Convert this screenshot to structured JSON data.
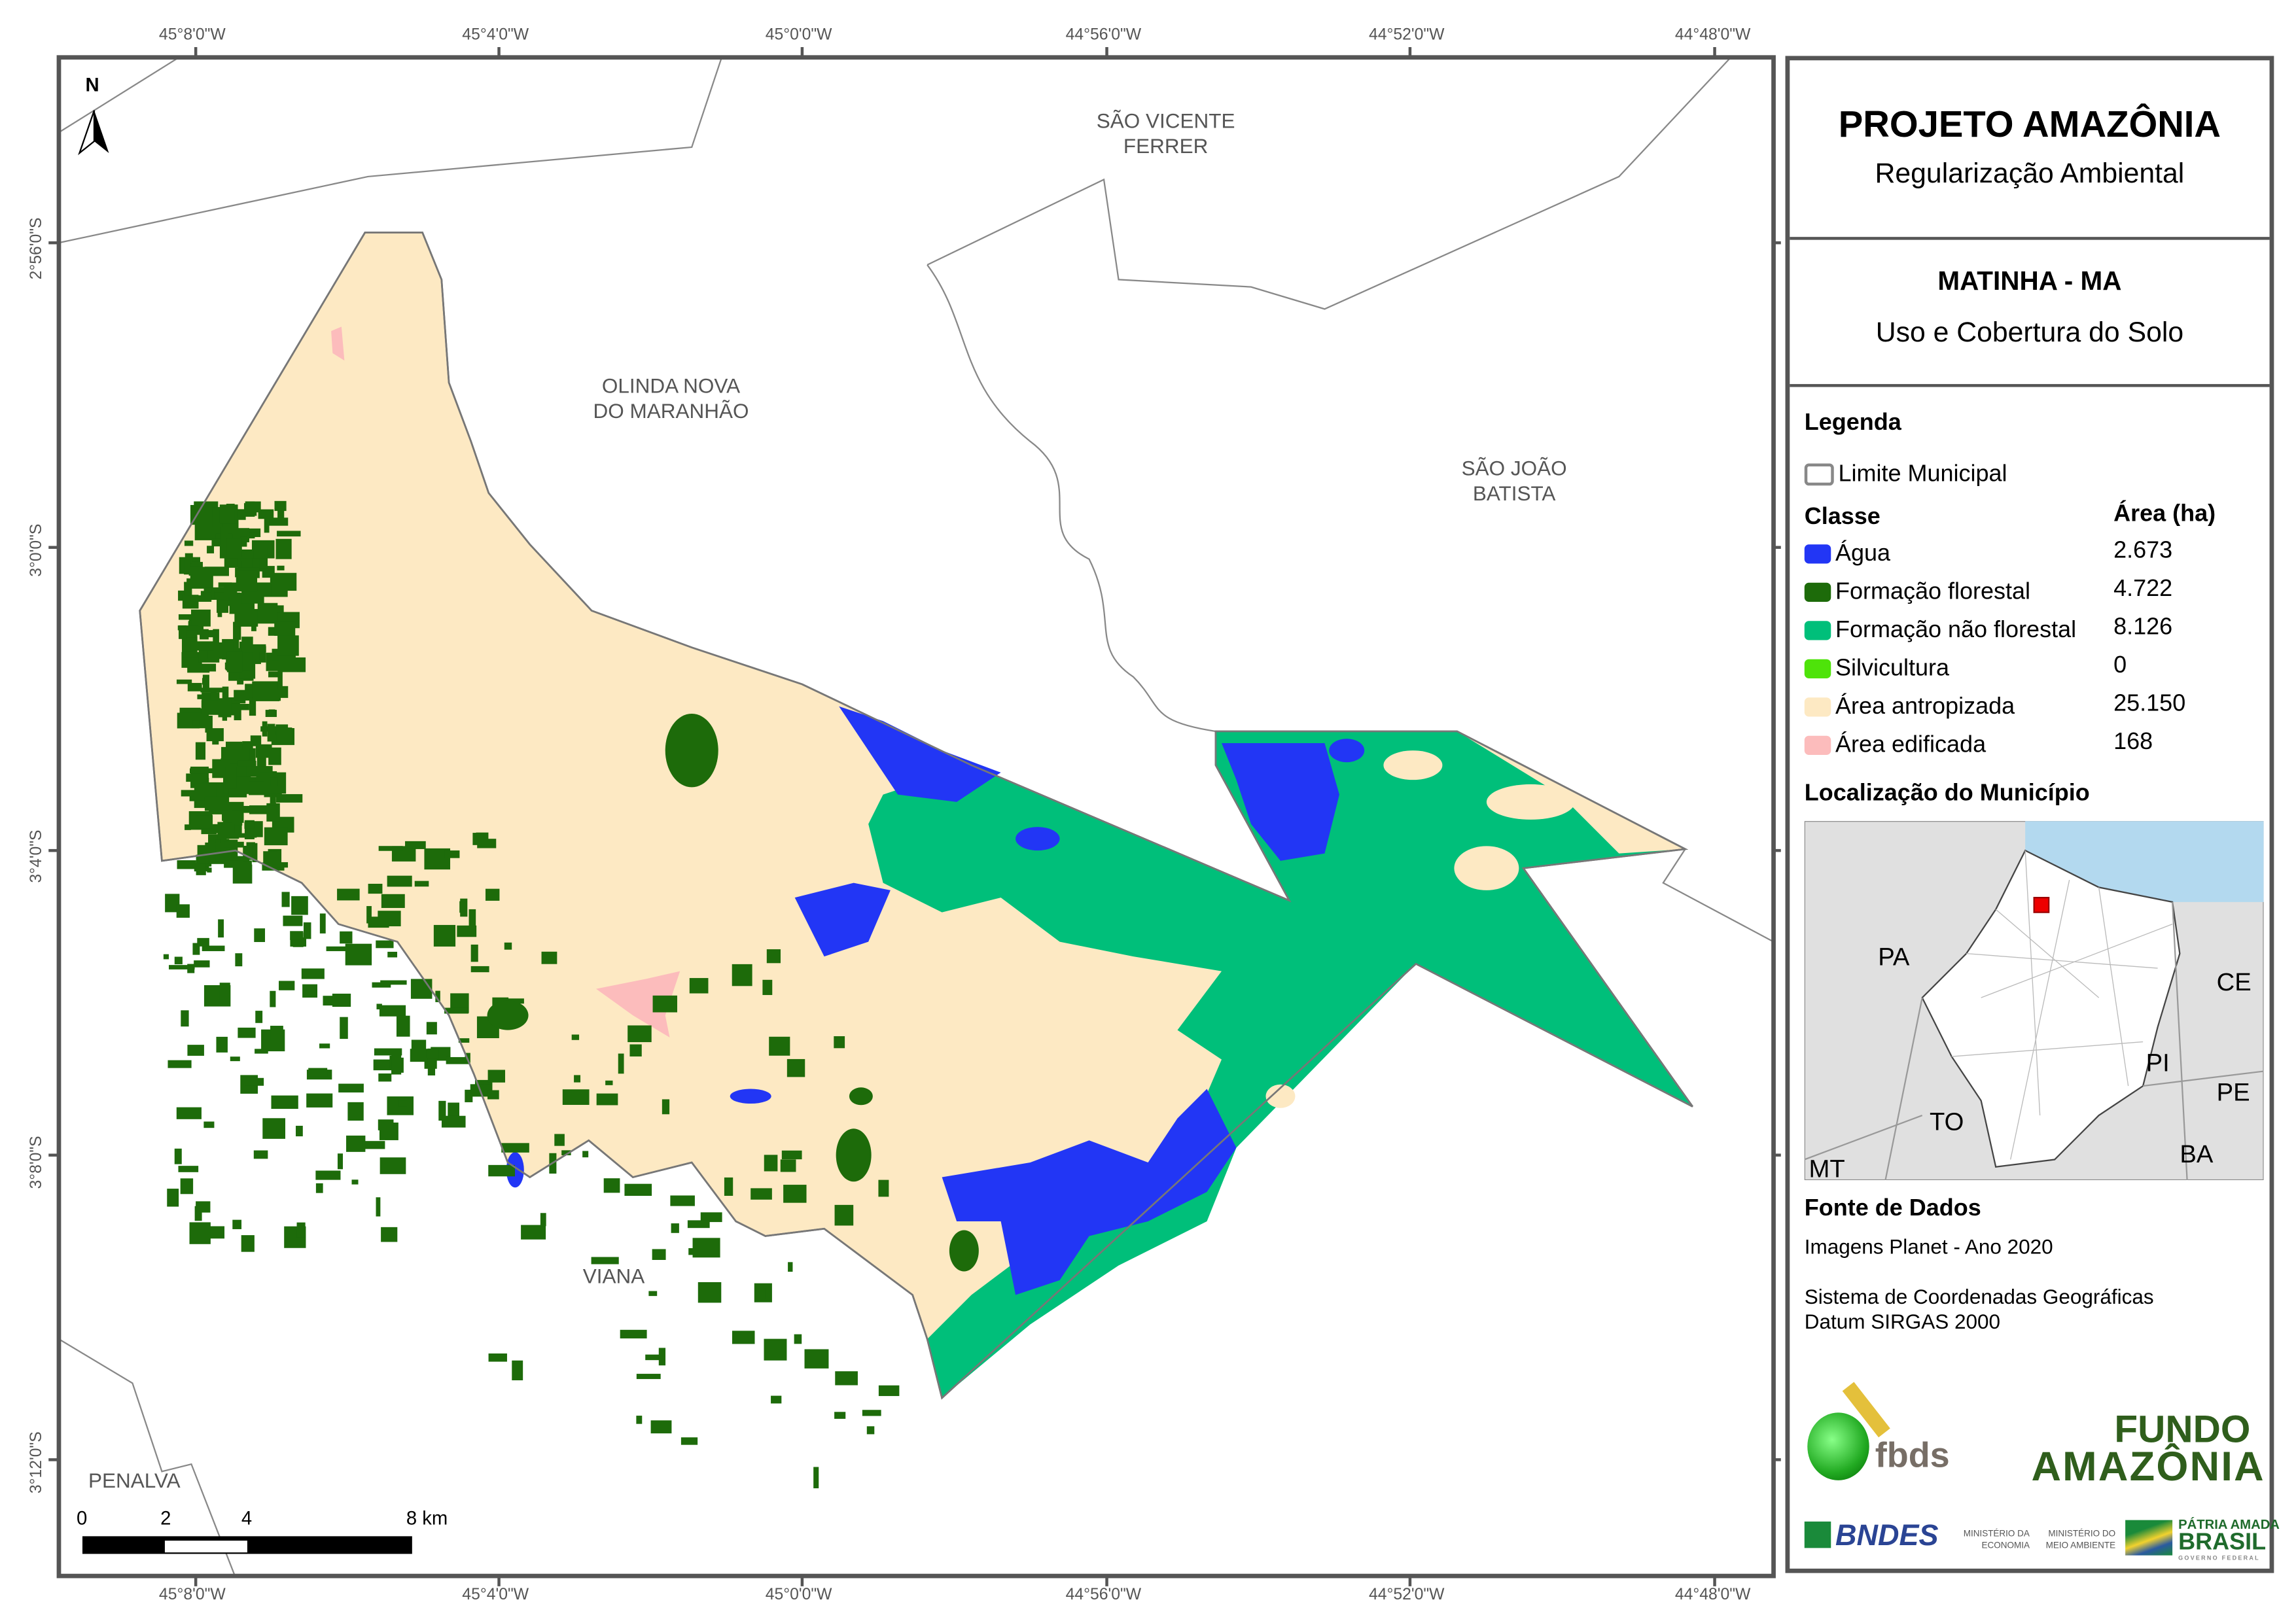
{
  "axes": {
    "lon_ticks": [
      "45°8'0\"W",
      "45°4'0\"W",
      "45°0'0\"W",
      "44°56'0\"W",
      "44°52'0\"W",
      "44°48'0\"W"
    ],
    "lat_ticks": [
      "2°56'0\"S",
      "3°0'0\"S",
      "3°4'0\"S",
      "3°8'0\"S",
      "3°12'0\"S"
    ]
  },
  "north_arrow": {
    "label": "N"
  },
  "places": {
    "sao_vicente": [
      "SÃO VICENTE",
      "FERRER"
    ],
    "olinda": [
      "OLINDA NOVA",
      "DO MARANHÃO"
    ],
    "sao_joao": [
      "SÃO JOÃO",
      "BATISTA"
    ],
    "viana": [
      "VIANA"
    ],
    "penalva": [
      "PENALVA"
    ]
  },
  "scalebar": {
    "labels": [
      "0",
      "2",
      "4",
      "8 km"
    ]
  },
  "panel": {
    "title": "PROJETO AMAZÔNIA",
    "subtitle": "Regularização Ambiental",
    "municipality": "MATINHA - MA",
    "theme": "Uso e Cobertura do Solo",
    "legend_title": "Legenda",
    "boundary_label": "Limite Municipal",
    "class_header": "Classe",
    "area_header": "Área (ha)",
    "classes": [
      {
        "label": "Água",
        "area": "2.673",
        "color": "#2236f5"
      },
      {
        "label": "Formação florestal",
        "area": "4.722",
        "color": "#1d6b0a"
      },
      {
        "label": "Formação não florestal",
        "area": "8.126",
        "color": "#00bf7a"
      },
      {
        "label": "Silvicultura",
        "area": "0",
        "color": "#4ee30a"
      },
      {
        "label": "Área antropizada",
        "area": "25.150",
        "color": "#fde9c3"
      },
      {
        "label": "Área edificada",
        "area": "168",
        "color": "#fcbcbc"
      }
    ],
    "location_title": "Localização do Município",
    "inset_labels": [
      "PA",
      "CE",
      "PI",
      "PE",
      "TO",
      "BA",
      "MT"
    ],
    "source_title": "Fonte de Dados",
    "source_lines": [
      "Imagens Planet - Ano 2020",
      "Sistema de Coordenadas Geográficas",
      "Datum SIRGAS 2000"
    ],
    "logos": {
      "fbds": "fbds",
      "fundo": [
        "FUNDO",
        "AMAZÔNIA"
      ],
      "bndes": "BNDES",
      "min_economia": [
        "MINISTÉRIO DA",
        "ECONOMIA"
      ],
      "min_ambiente": [
        "MINISTÉRIO DO",
        "MEIO AMBIENTE"
      ],
      "brasil": [
        "PÁTRIA AMADA",
        "BRASIL",
        "GOVERNO FEDERAL"
      ]
    }
  }
}
